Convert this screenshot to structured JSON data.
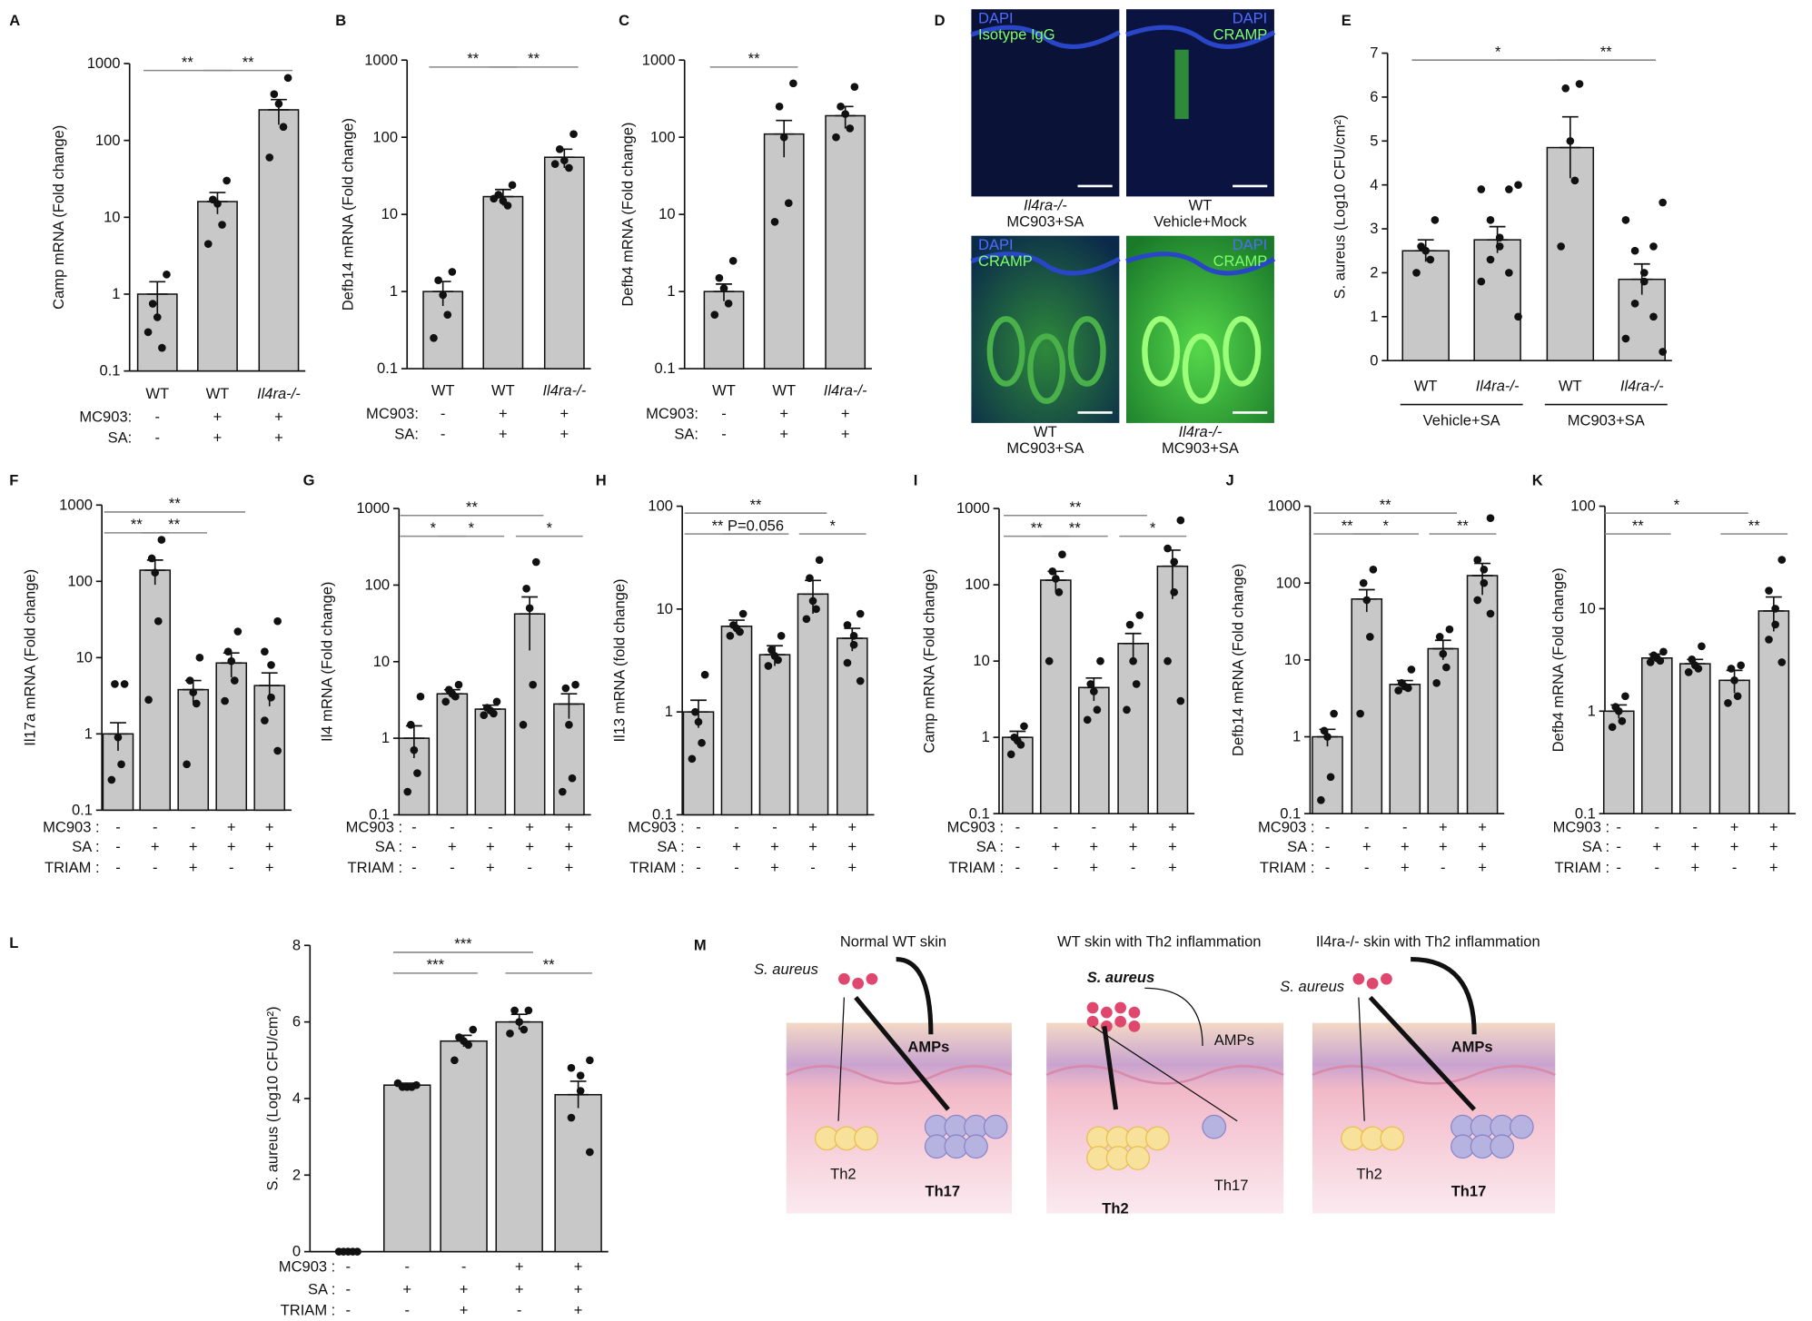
{
  "chart_data": [
    {
      "type": "bar",
      "panel": "A",
      "ylabel": "Camp mRNA (Fold change)",
      "log": true,
      "ylim": [
        0.1,
        1000
      ],
      "yticks": [
        0.1,
        1,
        10,
        100,
        1000
      ],
      "color": "#c8c8c8",
      "categories": [
        "WT",
        "WT",
        "Il4ra-/-"
      ],
      "rows": [
        {
          "label": "MC903:",
          "values": [
            "-",
            "+",
            "+"
          ]
        },
        {
          "label": "SA:",
          "values": [
            "-",
            "+",
            "+"
          ]
        }
      ],
      "values": [
        1,
        16,
        250
      ],
      "errors": [
        0.45,
        5,
        90
      ],
      "points": [
        [
          1.8,
          0.75,
          0.5,
          0.2,
          0.32
        ],
        [
          30,
          17,
          15,
          8,
          4.5
        ],
        [
          650,
          400,
          300,
          150,
          60
        ]
      ],
      "significance": [
        {
          "label": "**",
          "from": 0,
          "to": 1
        },
        {
          "label": "**",
          "from": 1,
          "to": 2
        }
      ]
    },
    {
      "type": "bar",
      "panel": "B",
      "ylabel": "Defb14 mRNA (Fold change)",
      "log": true,
      "ylim": [
        0.1,
        1000
      ],
      "yticks": [
        0.1,
        1,
        10,
        100,
        1000
      ],
      "color": "#c8c8c8",
      "categories": [
        "WT",
        "WT",
        "Il4ra-/-"
      ],
      "rows": [
        {
          "label": "MC903:",
          "values": [
            "-",
            "+",
            "+"
          ]
        },
        {
          "label": "SA:",
          "values": [
            "-",
            "+",
            "+"
          ]
        }
      ],
      "values": [
        1,
        17,
        55
      ],
      "errors": [
        0.35,
        4,
        15
      ],
      "points": [
        [
          1.8,
          1.4,
          0.9,
          0.5,
          0.25
        ],
        [
          24,
          18,
          15,
          13,
          16
        ],
        [
          110,
          70,
          50,
          40,
          45
        ]
      ],
      "significance": [
        {
          "label": "**",
          "from": 0,
          "to": 1
        },
        {
          "label": "**",
          "from": 1,
          "to": 2
        }
      ]
    },
    {
      "type": "bar",
      "panel": "C",
      "ylabel": "Defb4 mRNA (Fold change)",
      "log": true,
      "ylim": [
        0.1,
        1000
      ],
      "yticks": [
        0.1,
        1,
        10,
        100,
        1000
      ],
      "color": "#c8c8c8",
      "categories": [
        "WT",
        "WT",
        "Il4ra-/-"
      ],
      "rows": [
        {
          "label": "MC903:",
          "values": [
            "-",
            "+",
            "+"
          ]
        },
        {
          "label": "SA:",
          "values": [
            "-",
            "+",
            "+"
          ]
        }
      ],
      "values": [
        1,
        110,
        190
      ],
      "errors": [
        0.25,
        55,
        60
      ],
      "points": [
        [
          2.5,
          1.5,
          1.1,
          0.7,
          0.5
        ],
        [
          500,
          250,
          100,
          14,
          8
        ],
        [
          450,
          250,
          200,
          130,
          100
        ]
      ],
      "significance": [
        {
          "label": "**",
          "from": 0,
          "to": 1
        }
      ]
    },
    {
      "type": "bar",
      "panel": "E",
      "ylabel": "S. aureus (Log10 CFU/cm²)",
      "log": false,
      "ylim": [
        0,
        7
      ],
      "yticks": [
        0,
        1,
        2,
        3,
        4,
        5,
        6,
        7
      ],
      "color": "#c8c8c8",
      "categories": [
        "WT",
        "Il4ra-/-",
        "WT",
        "Il4ra-/-"
      ],
      "groups": [
        {
          "label": "Vehicle+SA",
          "from": 0,
          "to": 1
        },
        {
          "label": "MC903+SA",
          "from": 2,
          "to": 3
        }
      ],
      "values": [
        2.5,
        2.75,
        4.85,
        1.85
      ],
      "errors": [
        0.25,
        0.3,
        0.7,
        0.35
      ],
      "points": [
        [
          3.2,
          2.6,
          2.5,
          2.3,
          2
        ],
        [
          4,
          3.9,
          3.9,
          3.2,
          2.8,
          2.6,
          2.3,
          2,
          1.8,
          1
        ],
        [
          6.3,
          6.2,
          5,
          4.1,
          2.6
        ],
        [
          3.6,
          3.2,
          2.6,
          2.5,
          2,
          1.8,
          1.3,
          1,
          0.5,
          0.2
        ]
      ],
      "significance": [
        {
          "label": "*",
          "from": 0,
          "to": 2
        },
        {
          "label": "**",
          "from": 2,
          "to": 3
        }
      ]
    },
    {
      "type": "bar",
      "panel": "F",
      "ylabel": "Il17a  mRNA (Fold change)",
      "log": true,
      "ylim": [
        0.1,
        1000
      ],
      "yticks": [
        0.1,
        1,
        10,
        100,
        1000
      ],
      "color": "#c8c8c8",
      "rows": [
        {
          "label": "MC903 :",
          "values": [
            "-",
            "-",
            "-",
            "+",
            "+"
          ]
        },
        {
          "label": "SA :",
          "values": [
            "-",
            "+",
            "+",
            "+",
            "+"
          ]
        },
        {
          "label": "TRIAM :",
          "values": [
            "-",
            "-",
            "+",
            "-",
            "+"
          ]
        }
      ],
      "values": [
        1,
        140,
        3.8,
        8.5,
        4.3
      ],
      "errors": [
        0.4,
        50,
        1.2,
        3,
        2
      ],
      "points": [
        [
          4.5,
          4.5,
          0.9,
          0.4,
          0.25
        ],
        [
          350,
          200,
          130,
          30,
          2.8
        ],
        [
          10,
          5,
          3.5,
          2.5,
          0.4
        ],
        [
          22,
          12,
          9,
          5,
          2.7
        ],
        [
          30,
          12,
          8,
          3,
          1.5,
          0.6
        ]
      ],
      "significance": [
        {
          "label": "**",
          "from": 0,
          "to": 1
        },
        {
          "label": "**",
          "from": 1,
          "to": 2
        },
        {
          "label": "**",
          "from": 0,
          "to": 3
        }
      ]
    },
    {
      "type": "bar",
      "panel": "G",
      "ylabel": "Il4 mRNA (Fold change)",
      "log": true,
      "ylim": [
        0.1,
        1000
      ],
      "yticks": [
        0.1,
        1,
        10,
        100,
        1000
      ],
      "color": "#c8c8c8",
      "rows": [
        {
          "label": "MC903 :",
          "values": [
            "-",
            "-",
            "-",
            "+",
            "+"
          ]
        },
        {
          "label": "SA :",
          "values": [
            "-",
            "+",
            "+",
            "+",
            "+"
          ]
        },
        {
          "label": "TRIAM :",
          "values": [
            "-",
            "-",
            "+",
            "-",
            "+"
          ]
        }
      ],
      "values": [
        1,
        3.8,
        2.4,
        42,
        2.8
      ],
      "errors": [
        0.45,
        0.5,
        0.3,
        28,
        1
      ],
      "points": [
        [
          3.5,
          1.5,
          0.7,
          0.35,
          0.2
        ],
        [
          5,
          4.3,
          3.8,
          3.5,
          3
        ],
        [
          3,
          2.5,
          2.3,
          2.1,
          2
        ],
        [
          200,
          90,
          50,
          5,
          1.5
        ],
        [
          5,
          4.5,
          1.5,
          0.3,
          0.2
        ]
      ],
      "significance": [
        {
          "label": "*",
          "from": 0,
          "to": 1
        },
        {
          "label": "*",
          "from": 1,
          "to": 2
        },
        {
          "label": "*",
          "from": 3,
          "to": 4
        },
        {
          "label": "**",
          "from": 0,
          "to": 3
        }
      ]
    },
    {
      "type": "bar",
      "panel": "H",
      "ylabel": "Il13 mRNA (fold change)",
      "log": true,
      "ylim": [
        0.1,
        100
      ],
      "yticks": [
        0.1,
        1,
        10,
        100
      ],
      "color": "#c8c8c8",
      "rows": [
        {
          "label": "MC903 :",
          "values": [
            "-",
            "-",
            "-",
            "+",
            "+"
          ]
        },
        {
          "label": "SA :",
          "values": [
            "-",
            "+",
            "+",
            "+",
            "+"
          ]
        },
        {
          "label": "TRIAM :",
          "values": [
            "-",
            "-",
            "+",
            "-",
            "+"
          ]
        }
      ],
      "values": [
        1,
        6.8,
        3.6,
        14,
        5.2
      ],
      "errors": [
        0.3,
        1,
        0.8,
        5,
        1.3
      ],
      "points": [
        [
          2.3,
          1,
          0.8,
          0.5,
          0.35
        ],
        [
          9,
          7,
          6.5,
          6,
          5.5
        ],
        [
          5.5,
          4,
          3.5,
          3.2,
          2.8
        ],
        [
          30,
          20,
          12,
          10,
          8
        ],
        [
          9,
          7,
          5.5,
          4.5,
          3,
          2
        ]
      ],
      "significance": [
        {
          "label": "**",
          "from": 0,
          "to": 1
        },
        {
          "label": "P=0.056",
          "from": 1,
          "to": 2
        },
        {
          "label": "*",
          "from": 3,
          "to": 4
        },
        {
          "label": "**",
          "from": 0,
          "to": 3
        }
      ]
    },
    {
      "type": "bar",
      "panel": "I",
      "ylabel": "Camp  mRNA (Fold change)",
      "log": true,
      "ylim": [
        0.1,
        1000
      ],
      "yticks": [
        0.1,
        1,
        10,
        100,
        1000
      ],
      "color": "#c8c8c8",
      "rows": [
        {
          "label": "MC903 :",
          "values": [
            "-",
            "-",
            "-",
            "+",
            "+"
          ]
        },
        {
          "label": "SA :",
          "values": [
            "-",
            "+",
            "+",
            "+",
            "+"
          ]
        },
        {
          "label": "TRIAM :",
          "values": [
            "-",
            "-",
            "+",
            "-",
            "+"
          ]
        }
      ],
      "values": [
        1,
        115,
        4.5,
        17,
        175
      ],
      "errors": [
        0.2,
        35,
        1.5,
        6,
        110
      ],
      "points": [
        [
          1.4,
          1,
          0.9,
          0.8,
          0.6
        ],
        [
          250,
          150,
          120,
          80,
          10
        ],
        [
          10,
          5,
          4,
          2.3,
          1.7
        ],
        [
          40,
          30,
          10,
          5,
          2.3
        ],
        [
          700,
          300,
          200,
          80,
          10,
          3
        ]
      ],
      "significance": [
        {
          "label": "**",
          "from": 0,
          "to": 1
        },
        {
          "label": "**",
          "from": 1,
          "to": 2
        },
        {
          "label": "*",
          "from": 3,
          "to": 4
        },
        {
          "label": "**",
          "from": 0,
          "to": 3
        }
      ]
    },
    {
      "type": "bar",
      "panel": "J",
      "ylabel": "Defb14  mRNA (Fold change)",
      "log": true,
      "ylim": [
        0.1,
        1000
      ],
      "yticks": [
        0.1,
        1,
        10,
        100,
        1000
      ],
      "color": "#c8c8c8",
      "rows": [
        {
          "label": "MC903 :",
          "values": [
            "-",
            "-",
            "-",
            "+",
            "+"
          ]
        },
        {
          "label": "SA :",
          "values": [
            "-",
            "+",
            "+",
            "+",
            "+"
          ]
        },
        {
          "label": "TRIAM :",
          "values": [
            "-",
            "-",
            "+",
            "-",
            "+"
          ]
        }
      ],
      "values": [
        1,
        62,
        4.8,
        14,
        125
      ],
      "errors": [
        0.25,
        20,
        0.6,
        4,
        55
      ],
      "points": [
        [
          2,
          1.2,
          1,
          0.3,
          0.15
        ],
        [
          150,
          100,
          60,
          20,
          2
        ],
        [
          7.5,
          5,
          4.5,
          4.3,
          4
        ],
        [
          25,
          20,
          12,
          8,
          5
        ],
        [
          700,
          200,
          150,
          100,
          60,
          40
        ]
      ],
      "significance": [
        {
          "label": "**",
          "from": 0,
          "to": 1
        },
        {
          "label": "*",
          "from": 1,
          "to": 2
        },
        {
          "label": "**",
          "from": 3,
          "to": 4
        },
        {
          "label": "**",
          "from": 0,
          "to": 3
        }
      ]
    },
    {
      "type": "bar",
      "panel": "K",
      "ylabel": "Defb4  mRNA (Fold change)",
      "log": true,
      "ylim": [
        0.1,
        100
      ],
      "yticks": [
        0.1,
        1,
        10,
        100
      ],
      "color": "#c8c8c8",
      "rows": [
        {
          "label": "MC903 :",
          "values": [
            "-",
            "-",
            "-",
            "+",
            "+"
          ]
        },
        {
          "label": "SA :",
          "values": [
            "-",
            "+",
            "+",
            "+",
            "+"
          ]
        },
        {
          "label": "TRIAM :",
          "values": [
            "-",
            "-",
            "+",
            "-",
            "+"
          ]
        }
      ],
      "values": [
        1,
        3.3,
        2.9,
        2,
        9.5
      ],
      "errors": [
        0.15,
        0.3,
        0.3,
        0.5,
        3.5
      ],
      "points": [
        [
          1.4,
          1.1,
          1,
          0.8,
          0.7
        ],
        [
          3.8,
          3.5,
          3.3,
          3.1,
          3
        ],
        [
          4.3,
          3.2,
          2.8,
          2.6,
          2.4
        ],
        [
          2.8,
          2.6,
          2,
          1.4,
          1.2
        ],
        [
          30,
          15,
          10,
          7,
          5,
          3
        ]
      ],
      "significance": [
        {
          "label": "**",
          "from": 0,
          "to": 1
        },
        {
          "label": "**",
          "from": 3,
          "to": 4
        },
        {
          "label": "*",
          "from": 0,
          "to": 3
        }
      ]
    },
    {
      "type": "bar",
      "panel": "L",
      "ylabel": "S. aureus  (Log10 CFU/cm²)",
      "log": false,
      "ylim": [
        0,
        8
      ],
      "yticks": [
        0,
        2,
        4,
        6,
        8
      ],
      "color": "#c8c8c8",
      "rows": [
        {
          "label": "MC903 :",
          "values": [
            "-",
            "-",
            "-",
            "+",
            "+"
          ]
        },
        {
          "label": "SA :",
          "values": [
            "-",
            "+",
            "+",
            "+",
            "+"
          ]
        },
        {
          "label": "TRIAM :",
          "values": [
            "-",
            "-",
            "+",
            "-",
            "+"
          ]
        }
      ],
      "values": [
        0,
        4.35,
        5.5,
        6,
        4.1
      ],
      "errors": [
        0,
        0.05,
        0.15,
        0.2,
        0.35
      ],
      "points": [
        [
          0,
          0,
          0,
          0,
          0
        ],
        [
          4.35,
          4.3,
          4.3,
          4.3,
          4.4
        ],
        [
          5.8,
          5.6,
          5.5,
          5.4,
          5
        ],
        [
          6.3,
          6.3,
          6,
          5.8,
          5.7
        ],
        [
          5,
          4.8,
          4.6,
          4.2,
          3.5,
          2.6
        ]
      ],
      "significance": [
        {
          "label": "***",
          "from": 1,
          "to": 2
        },
        {
          "label": "**",
          "from": 3,
          "to": 4
        },
        {
          "label": "***",
          "from": 1,
          "to": 3
        }
      ]
    }
  ],
  "image_panel": {
    "panel": "D",
    "tiles": [
      {
        "stain1": "DAPI",
        "stain2": "Isotype IgG",
        "caption": [
          "Il4ra-/-",
          "MC903+SA"
        ]
      },
      {
        "stain1": "DAPI",
        "stain2": "CRAMP",
        "caption": [
          "WT",
          "Vehicle+Mock"
        ]
      },
      {
        "stain1": "DAPI",
        "stain2": "CRAMP",
        "caption": [
          "WT",
          "MC903+SA"
        ]
      },
      {
        "stain1": "DAPI",
        "stain2": "CRAMP",
        "caption": [
          "Il4ra-/-",
          "MC903+SA"
        ]
      }
    ]
  },
  "schematic": {
    "panel": "M",
    "panes": [
      {
        "title": "Normal WT skin",
        "bacteria": "S. aureus",
        "amps": "AMPs",
        "th2": "Th2",
        "th17": "Th17"
      },
      {
        "title": "WT skin with Th2 inflammation",
        "bacteria": "S. aureus",
        "amps": "AMPs",
        "th2": "Th2",
        "th17": "Th17"
      },
      {
        "title": "Il4ra-/- skin with Th2 inflammation",
        "bacteria": "S. aureus",
        "amps": "AMPs",
        "th2": "Th2",
        "th17": "Th17"
      }
    ]
  }
}
